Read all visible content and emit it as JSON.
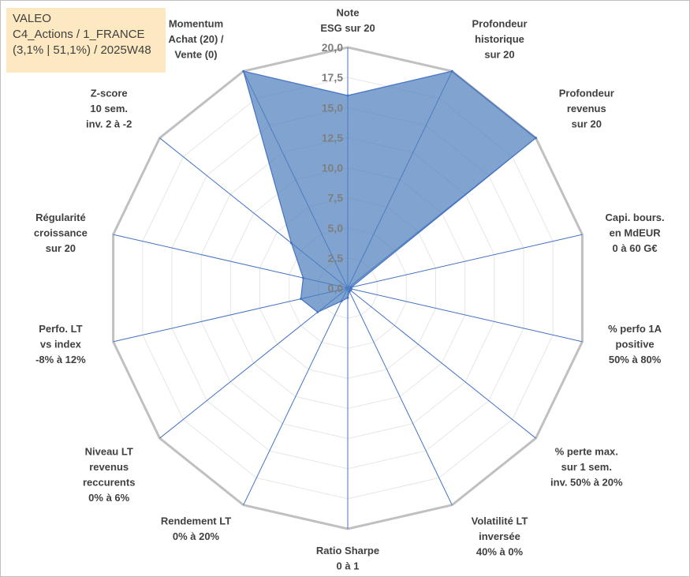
{
  "info_box": {
    "line1": "VALEO",
    "line2": "C4_Actions / 1_FRANCE",
    "line3": "(3,1% | 51,1%) / 2025W48"
  },
  "colors": {
    "fill": "#4f81bd",
    "stroke": "#4472c4",
    "outer_grid": "#c0c0c0",
    "inner_grid": "#e6e6e6",
    "background_box": "#fce9c2"
  },
  "chart_data": {
    "type": "radar",
    "rmin": 0,
    "rmax": 20,
    "tick_step": 2.5,
    "tick_labels": [
      "0,0",
      "2,5",
      "5,0",
      "7,5",
      "10,0",
      "12,5",
      "15,0",
      "17,5",
      "20,0"
    ],
    "categories": [
      [
        "Note",
        "ESG sur 20"
      ],
      [
        "Profondeur",
        "historique",
        "sur 20"
      ],
      [
        "Profondeur",
        "revenus",
        "sur 20"
      ],
      [
        "Capi. bours.",
        "en MdEUR",
        "0 à 60 G€"
      ],
      [
        "% perfo 1A",
        "positive",
        "50% à 80%"
      ],
      [
        "% perte max.",
        "sur 1 sem.",
        "inv. 50% à 20%"
      ],
      [
        "Volatilité LT",
        "inversée",
        "40% à 0%"
      ],
      [
        "Ratio Sharpe",
        "0 à 1"
      ],
      [
        "Rendement LT",
        "0% à 20%"
      ],
      [
        "Niveau LT",
        "revenus",
        "reccurents",
        "0% à 6%"
      ],
      [
        "Perfo. LT",
        "vs index",
        "-8% à 12%"
      ],
      [
        "Régularité",
        "croissance",
        "sur 20"
      ],
      [
        "Z-score",
        "10 sem.",
        "inv. 2 à -2"
      ],
      [
        "Momentum",
        "Achat (20) /",
        "Vente (0)"
      ]
    ],
    "values": [
      16,
      20,
      20,
      0.3,
      0.3,
      0.3,
      0.3,
      0.8,
      1.2,
      3.2,
      4.0,
      3.8,
      6.0,
      20
    ],
    "grid": true,
    "legend": "none"
  }
}
